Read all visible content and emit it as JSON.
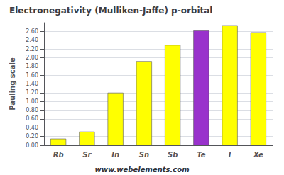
{
  "chart_data": {
    "type": "bar",
    "title": "Electronegativity (Mulliken-Jaffe) p-orbital",
    "ylabel": "Pauling scale",
    "annotations": [
      "www.webelements.com"
    ],
    "categories": [
      "Rb",
      "Sr",
      "In",
      "Sn",
      "Sb",
      "Te",
      "I",
      "Xe"
    ],
    "values": [
      0.15,
      0.31,
      1.2,
      1.92,
      2.29,
      2.62,
      2.74,
      2.58
    ],
    "colors": [
      "#ffff00",
      "#ffff00",
      "#ffff00",
      "#ffff00",
      "#ffff00",
      "#9932cc",
      "#ffff00",
      "#ffff00"
    ],
    "ylim": [
      0.0,
      2.8
    ],
    "yticks": [
      {
        "value": 0.0,
        "label": "0.00"
      },
      {
        "value": 0.2,
        "label": "0.20"
      },
      {
        "value": 0.4,
        "label": "0.40"
      },
      {
        "value": 0.6,
        "label": "0.60"
      },
      {
        "value": 0.8,
        "label": "0.80"
      },
      {
        "value": 1.0,
        "label": "1.00"
      },
      {
        "value": 1.2,
        "label": "1.20"
      },
      {
        "value": 1.4,
        "label": "1.40"
      },
      {
        "value": 1.6,
        "label": "1.60"
      },
      {
        "value": 1.8,
        "label": "1.80"
      },
      {
        "value": 2.0,
        "label": "2.00"
      },
      {
        "value": 2.2,
        "label": "2.20"
      },
      {
        "value": 2.4,
        "label": "2.40"
      },
      {
        "value": 2.6,
        "label": "2.60"
      }
    ],
    "grid": true
  }
}
